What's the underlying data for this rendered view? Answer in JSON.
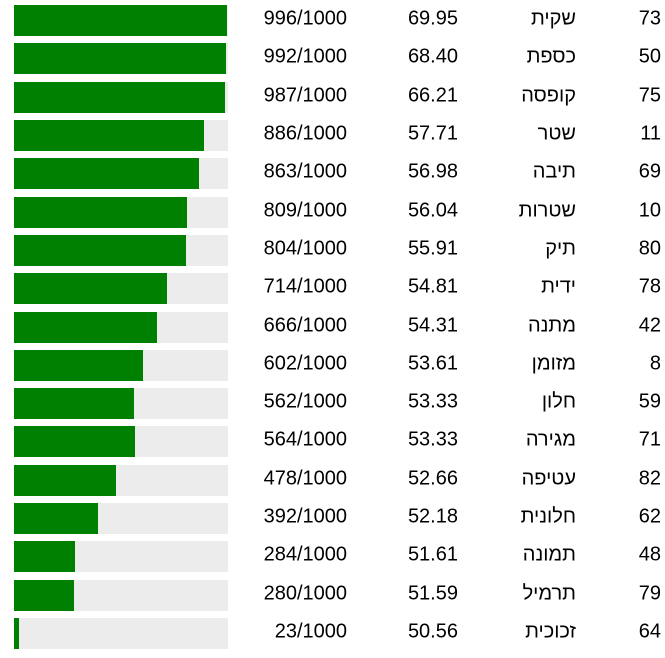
{
  "chart_data": {
    "type": "bar",
    "orientation": "horizontal",
    "title": "",
    "legend": "none",
    "grid": false,
    "bar_color": "#008000",
    "track_color": "#ececec",
    "text_color": "#000000",
    "max": 1000,
    "columns": [
      "bar",
      "fraction",
      "score",
      "word",
      "id"
    ],
    "rows": [
      {
        "id": "73",
        "word": "שקית",
        "score": "69.95",
        "count": 996,
        "fraction": "996/1000"
      },
      {
        "id": "50",
        "word": "כספת",
        "score": "68.40",
        "count": 992,
        "fraction": "992/1000"
      },
      {
        "id": "75",
        "word": "קופסה",
        "score": "66.21",
        "count": 987,
        "fraction": "987/1000"
      },
      {
        "id": "11",
        "word": "שטר",
        "score": "57.71",
        "count": 886,
        "fraction": "886/1000"
      },
      {
        "id": "69",
        "word": "תיבה",
        "score": "56.98",
        "count": 863,
        "fraction": "863/1000"
      },
      {
        "id": "10",
        "word": "שטרות",
        "score": "56.04",
        "count": 809,
        "fraction": "809/1000"
      },
      {
        "id": "80",
        "word": "תיק",
        "score": "55.91",
        "count": 804,
        "fraction": "804/1000"
      },
      {
        "id": "78",
        "word": "ידית",
        "score": "54.81",
        "count": 714,
        "fraction": "714/1000"
      },
      {
        "id": "42",
        "word": "מתנה",
        "score": "54.31",
        "count": 666,
        "fraction": "666/1000"
      },
      {
        "id": "8",
        "word": "מזומן",
        "score": "53.61",
        "count": 602,
        "fraction": "602/1000"
      },
      {
        "id": "59",
        "word": "חלון",
        "score": "53.33",
        "count": 562,
        "fraction": "562/1000"
      },
      {
        "id": "71",
        "word": "מגירה",
        "score": "53.33",
        "count": 564,
        "fraction": "564/1000"
      },
      {
        "id": "82",
        "word": "עטיפה",
        "score": "52.66",
        "count": 478,
        "fraction": "478/1000"
      },
      {
        "id": "62",
        "word": "חלונית",
        "score": "52.18",
        "count": 392,
        "fraction": "392/1000"
      },
      {
        "id": "48",
        "word": "תמונה",
        "score": "51.61",
        "count": 284,
        "fraction": "284/1000"
      },
      {
        "id": "79",
        "word": "תרמיל",
        "score": "51.59",
        "count": 280,
        "fraction": "280/1000"
      },
      {
        "id": "64",
        "word": "זכוכית",
        "score": "50.56",
        "count": 23,
        "fraction": "23/1000"
      }
    ]
  }
}
